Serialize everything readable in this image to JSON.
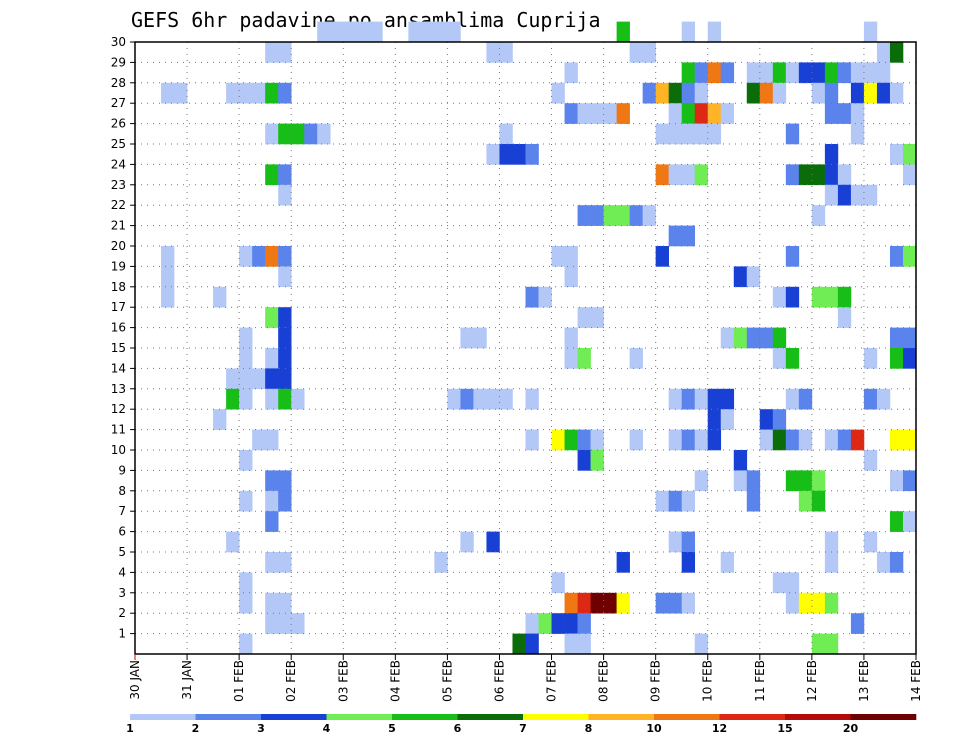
{
  "chart_data": {
    "type": "heatmap",
    "title": "GEFS 6hr padavine po ansamblima Cuprija",
    "xlabel": "",
    "ylabel": "",
    "x_labels": [
      "30 JAN",
      "31 JAN",
      "01 FEB",
      "02 FEB",
      "03 FEB",
      "04 FEB",
      "05 FEB",
      "06 FEB",
      "07 FEB",
      "08 FEB",
      "09 FEB",
      "10 FEB",
      "11 FEB",
      "12 FEB",
      "13 FEB",
      "14 FEB"
    ],
    "x_steps": 60,
    "y_labels": [
      "1",
      "2",
      "3",
      "4",
      "5",
      "6",
      "7",
      "8",
      "9",
      "10",
      "11",
      "12",
      "13",
      "14",
      "15",
      "16",
      "17",
      "18",
      "19",
      "20",
      "21",
      "22",
      "23",
      "24",
      "25",
      "26",
      "27",
      "28",
      "29",
      "30"
    ],
    "colorbar": {
      "ticks": [
        "1",
        "2",
        "3",
        "4",
        "5",
        "6",
        "7",
        "8",
        "10",
        "12",
        "15",
        "20"
      ],
      "colors": [
        "#b3c8f7",
        "#5b83ec",
        "#1940d4",
        "#70ec55",
        "#18be18",
        "#0a6d0a",
        "#ffff00",
        "#ffb428",
        "#f07814",
        "#dc2814",
        "#b40a0a",
        "#6e0000"
      ]
    },
    "cells": [
      [
        30,
        14,
        0
      ],
      [
        30,
        15,
        0
      ],
      [
        30,
        16,
        0
      ],
      [
        30,
        17,
        0
      ],
      [
        30,
        18,
        0
      ],
      [
        30,
        21,
        0
      ],
      [
        30,
        22,
        0
      ],
      [
        30,
        23,
        0
      ],
      [
        30,
        24,
        0
      ],
      [
        30,
        37,
        4
      ],
      [
        30,
        42,
        0
      ],
      [
        30,
        44,
        0
      ],
      [
        30,
        56,
        0
      ],
      [
        29,
        10,
        0
      ],
      [
        29,
        11,
        0
      ],
      [
        29,
        27,
        0
      ],
      [
        29,
        28,
        0
      ],
      [
        29,
        38,
        0
      ],
      [
        29,
        39,
        0
      ],
      [
        29,
        57,
        0
      ],
      [
        29,
        58,
        5
      ],
      [
        28,
        33,
        0
      ],
      [
        28,
        42,
        4
      ],
      [
        28,
        43,
        1
      ],
      [
        28,
        44,
        8
      ],
      [
        28,
        45,
        1
      ],
      [
        28,
        47,
        0
      ],
      [
        28,
        48,
        0
      ],
      [
        28,
        49,
        4
      ],
      [
        28,
        50,
        0
      ],
      [
        28,
        51,
        2
      ],
      [
        28,
        52,
        2
      ],
      [
        28,
        53,
        4
      ],
      [
        28,
        54,
        1
      ],
      [
        28,
        55,
        0
      ],
      [
        28,
        56,
        0
      ],
      [
        28,
        57,
        0
      ],
      [
        27,
        2,
        0
      ],
      [
        27,
        3,
        0
      ],
      [
        27,
        7,
        0
      ],
      [
        27,
        8,
        0
      ],
      [
        27,
        9,
        0
      ],
      [
        27,
        10,
        4
      ],
      [
        27,
        11,
        1
      ],
      [
        27,
        32,
        0
      ],
      [
        27,
        39,
        1
      ],
      [
        27,
        40,
        7
      ],
      [
        27,
        41,
        5
      ],
      [
        27,
        42,
        1
      ],
      [
        27,
        43,
        0
      ],
      [
        27,
        47,
        5
      ],
      [
        27,
        48,
        8
      ],
      [
        27,
        49,
        0
      ],
      [
        27,
        52,
        0
      ],
      [
        27,
        53,
        1
      ],
      [
        27,
        55,
        2
      ],
      [
        27,
        56,
        6
      ],
      [
        27,
        57,
        2
      ],
      [
        27,
        58,
        0
      ],
      [
        26,
        33,
        1
      ],
      [
        26,
        34,
        0
      ],
      [
        26,
        35,
        0
      ],
      [
        26,
        36,
        0
      ],
      [
        26,
        37,
        8
      ],
      [
        26,
        41,
        0
      ],
      [
        26,
        42,
        4
      ],
      [
        26,
        43,
        9
      ],
      [
        26,
        44,
        7
      ],
      [
        26,
        45,
        0
      ],
      [
        26,
        53,
        1
      ],
      [
        26,
        54,
        1
      ],
      [
        26,
        55,
        0
      ],
      [
        25,
        10,
        0
      ],
      [
        25,
        11,
        4
      ],
      [
        25,
        12,
        4
      ],
      [
        25,
        13,
        1
      ],
      [
        25,
        14,
        0
      ],
      [
        25,
        28,
        0
      ],
      [
        25,
        40,
        0
      ],
      [
        25,
        41,
        0
      ],
      [
        25,
        42,
        0
      ],
      [
        25,
        43,
        0
      ],
      [
        25,
        44,
        0
      ],
      [
        25,
        50,
        1
      ],
      [
        25,
        55,
        0
      ],
      [
        24,
        27,
        0
      ],
      [
        24,
        28,
        2
      ],
      [
        24,
        29,
        2
      ],
      [
        24,
        30,
        1
      ],
      [
        24,
        53,
        2
      ],
      [
        24,
        58,
        0
      ],
      [
        24,
        59,
        3
      ],
      [
        23,
        10,
        4
      ],
      [
        23,
        11,
        1
      ],
      [
        23,
        40,
        8
      ],
      [
        23,
        41,
        0
      ],
      [
        23,
        42,
        0
      ],
      [
        23,
        43,
        3
      ],
      [
        23,
        50,
        1
      ],
      [
        23,
        51,
        5
      ],
      [
        23,
        52,
        5
      ],
      [
        23,
        53,
        2
      ],
      [
        23,
        54,
        0
      ],
      [
        23,
        59,
        0
      ],
      [
        22,
        11,
        0
      ],
      [
        22,
        53,
        0
      ],
      [
        22,
        54,
        2
      ],
      [
        22,
        55,
        0
      ],
      [
        22,
        56,
        0
      ],
      [
        21,
        34,
        1
      ],
      [
        21,
        35,
        1
      ],
      [
        21,
        36,
        3
      ],
      [
        21,
        37,
        3
      ],
      [
        21,
        38,
        1
      ],
      [
        21,
        39,
        0
      ],
      [
        21,
        52,
        0
      ],
      [
        20,
        41,
        1
      ],
      [
        20,
        42,
        1
      ],
      [
        19,
        2,
        0
      ],
      [
        19,
        8,
        0
      ],
      [
        19,
        9,
        1
      ],
      [
        19,
        10,
        8
      ],
      [
        19,
        11,
        1
      ],
      [
        19,
        32,
        0
      ],
      [
        19,
        33,
        0
      ],
      [
        19,
        40,
        2
      ],
      [
        19,
        50,
        1
      ],
      [
        19,
        58,
        1
      ],
      [
        19,
        59,
        3
      ],
      [
        18,
        2,
        0
      ],
      [
        18,
        11,
        0
      ],
      [
        18,
        33,
        0
      ],
      [
        18,
        46,
        2
      ],
      [
        18,
        47,
        0
      ],
      [
        17,
        2,
        0
      ],
      [
        17,
        6,
        0
      ],
      [
        17,
        30,
        1
      ],
      [
        17,
        31,
        0
      ],
      [
        17,
        49,
        0
      ],
      [
        17,
        50,
        2
      ],
      [
        17,
        52,
        3
      ],
      [
        17,
        53,
        3
      ],
      [
        17,
        54,
        4
      ],
      [
        16,
        10,
        3
      ],
      [
        16,
        11,
        2
      ],
      [
        16,
        34,
        0
      ],
      [
        16,
        35,
        0
      ],
      [
        16,
        54,
        0
      ],
      [
        15,
        8,
        0
      ],
      [
        15,
        11,
        2
      ],
      [
        15,
        25,
        0
      ],
      [
        15,
        26,
        0
      ],
      [
        15,
        33,
        0
      ],
      [
        15,
        45,
        0
      ],
      [
        15,
        46,
        3
      ],
      [
        15,
        47,
        1
      ],
      [
        15,
        48,
        1
      ],
      [
        15,
        49,
        4
      ],
      [
        15,
        58,
        1
      ],
      [
        15,
        59,
        1
      ],
      [
        14,
        8,
        0
      ],
      [
        14,
        10,
        0
      ],
      [
        14,
        11,
        2
      ],
      [
        14,
        33,
        0
      ],
      [
        14,
        34,
        3
      ],
      [
        14,
        38,
        0
      ],
      [
        14,
        49,
        0
      ],
      [
        14,
        50,
        4
      ],
      [
        14,
        56,
        0
      ],
      [
        14,
        58,
        4
      ],
      [
        14,
        59,
        2
      ],
      [
        13,
        7,
        0
      ],
      [
        13,
        8,
        0
      ],
      [
        13,
        9,
        0
      ],
      [
        13,
        10,
        2
      ],
      [
        13,
        11,
        2
      ],
      [
        12,
        7,
        4
      ],
      [
        12,
        8,
        0
      ],
      [
        12,
        10,
        0
      ],
      [
        12,
        11,
        4
      ],
      [
        12,
        12,
        0
      ],
      [
        12,
        24,
        0
      ],
      [
        12,
        25,
        1
      ],
      [
        12,
        26,
        0
      ],
      [
        12,
        27,
        0
      ],
      [
        12,
        28,
        0
      ],
      [
        12,
        30,
        0
      ],
      [
        12,
        41,
        0
      ],
      [
        12,
        42,
        1
      ],
      [
        12,
        43,
        0
      ],
      [
        12,
        44,
        2
      ],
      [
        12,
        45,
        2
      ],
      [
        12,
        50,
        0
      ],
      [
        12,
        51,
        1
      ],
      [
        12,
        56,
        1
      ],
      [
        12,
        57,
        0
      ],
      [
        11,
        6,
        0
      ],
      [
        11,
        44,
        2
      ],
      [
        11,
        45,
        0
      ],
      [
        11,
        48,
        2
      ],
      [
        11,
        49,
        1
      ],
      [
        10,
        9,
        0
      ],
      [
        10,
        10,
        0
      ],
      [
        10,
        30,
        0
      ],
      [
        10,
        32,
        6
      ],
      [
        10,
        33,
        4
      ],
      [
        10,
        34,
        1
      ],
      [
        10,
        35,
        0
      ],
      [
        10,
        38,
        0
      ],
      [
        10,
        41,
        0
      ],
      [
        10,
        42,
        1
      ],
      [
        10,
        43,
        0
      ],
      [
        10,
        44,
        2
      ],
      [
        10,
        48,
        0
      ],
      [
        10,
        49,
        5
      ],
      [
        10,
        50,
        1
      ],
      [
        10,
        51,
        0
      ],
      [
        10,
        53,
        0
      ],
      [
        10,
        54,
        1
      ],
      [
        10,
        55,
        9
      ],
      [
        10,
        58,
        6
      ],
      [
        10,
        59,
        6
      ],
      [
        9,
        8,
        0
      ],
      [
        9,
        34,
        2
      ],
      [
        9,
        35,
        3
      ],
      [
        9,
        46,
        2
      ],
      [
        9,
        56,
        0
      ],
      [
        8,
        10,
        1
      ],
      [
        8,
        11,
        1
      ],
      [
        8,
        43,
        0
      ],
      [
        8,
        46,
        0
      ],
      [
        8,
        47,
        1
      ],
      [
        8,
        50,
        4
      ],
      [
        8,
        51,
        4
      ],
      [
        8,
        52,
        3
      ],
      [
        8,
        58,
        0
      ],
      [
        8,
        59,
        1
      ],
      [
        7,
        8,
        0
      ],
      [
        7,
        10,
        0
      ],
      [
        7,
        11,
        1
      ],
      [
        7,
        40,
        0
      ],
      [
        7,
        41,
        1
      ],
      [
        7,
        42,
        0
      ],
      [
        7,
        47,
        1
      ],
      [
        7,
        51,
        3
      ],
      [
        7,
        52,
        4
      ],
      [
        6,
        10,
        1
      ],
      [
        6,
        58,
        4
      ],
      [
        6,
        59,
        0
      ],
      [
        5,
        7,
        0
      ],
      [
        5,
        25,
        0
      ],
      [
        5,
        27,
        2
      ],
      [
        5,
        41,
        0
      ],
      [
        5,
        42,
        1
      ],
      [
        5,
        53,
        0
      ],
      [
        5,
        56,
        0
      ],
      [
        4,
        10,
        0
      ],
      [
        4,
        11,
        0
      ],
      [
        4,
        23,
        0
      ],
      [
        4,
        37,
        2
      ],
      [
        4,
        42,
        2
      ],
      [
        4,
        45,
        0
      ],
      [
        4,
        53,
        0
      ],
      [
        4,
        57,
        0
      ],
      [
        4,
        58,
        1
      ],
      [
        3,
        8,
        0
      ],
      [
        3,
        32,
        0
      ],
      [
        3,
        49,
        0
      ],
      [
        3,
        50,
        0
      ],
      [
        2,
        8,
        0
      ],
      [
        2,
        10,
        0
      ],
      [
        2,
        11,
        0
      ],
      [
        2,
        33,
        8
      ],
      [
        2,
        34,
        9
      ],
      [
        2,
        35,
        11
      ],
      [
        2,
        36,
        11
      ],
      [
        2,
        37,
        6
      ],
      [
        2,
        40,
        1
      ],
      [
        2,
        41,
        1
      ],
      [
        2,
        42,
        0
      ],
      [
        2,
        50,
        0
      ],
      [
        2,
        51,
        6
      ],
      [
        2,
        52,
        6
      ],
      [
        2,
        53,
        3
      ],
      [
        1,
        10,
        0
      ],
      [
        1,
        11,
        0
      ],
      [
        1,
        12,
        0
      ],
      [
        1,
        30,
        0
      ],
      [
        1,
        31,
        3
      ],
      [
        1,
        32,
        2
      ],
      [
        1,
        33,
        2
      ],
      [
        1,
        34,
        1
      ],
      [
        1,
        55,
        1
      ],
      [
        0,
        8,
        0
      ],
      [
        0,
        29,
        5
      ],
      [
        0,
        30,
        2
      ],
      [
        0,
        33,
        0
      ],
      [
        0,
        34,
        0
      ],
      [
        0,
        43,
        0
      ],
      [
        0,
        52,
        3
      ],
      [
        0,
        53,
        3
      ]
    ]
  }
}
